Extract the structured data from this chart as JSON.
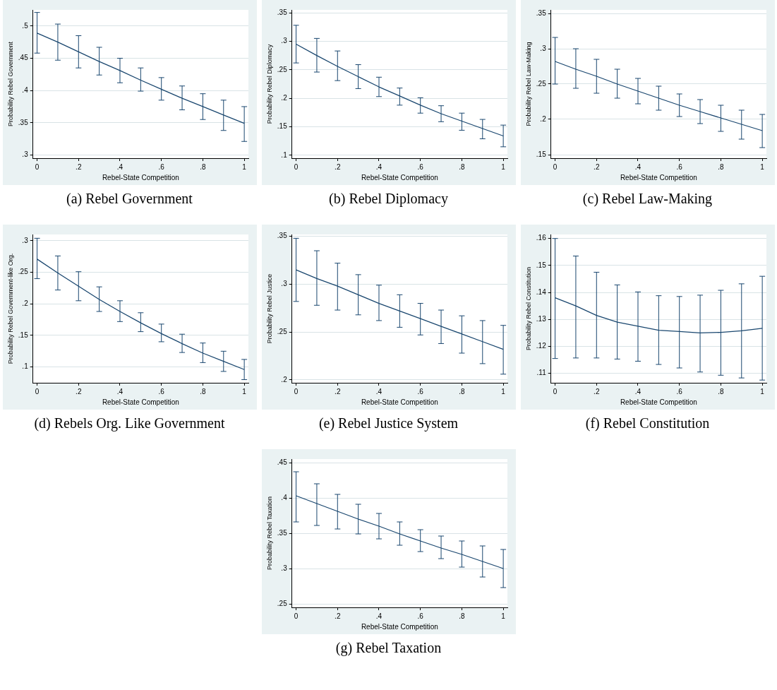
{
  "chart_data": [
    {
      "type": "line",
      "title": "(a) Rebel Government",
      "xlabel": "Rebel-State Competition",
      "ylabel": "Probability Rebel Government",
      "x": [
        0,
        0.1,
        0.2,
        0.3,
        0.4,
        0.5,
        0.6,
        0.7,
        0.8,
        0.9,
        1
      ],
      "xlim": [
        -0.02,
        1.02
      ],
      "xticks": [
        {
          "value": 0,
          "label": "0"
        },
        {
          "value": 0.2,
          "label": ".2"
        },
        {
          "value": 0.4,
          "label": ".4"
        },
        {
          "value": 0.6,
          "label": ".6"
        },
        {
          "value": 0.8,
          "label": ".8"
        },
        {
          "value": 1,
          "label": "1"
        }
      ],
      "ylim": [
        0.295,
        0.525
      ],
      "yticks": [
        {
          "value": 0.3,
          "label": ".3"
        },
        {
          "value": 0.35,
          "label": ".35"
        },
        {
          "value": 0.4,
          "label": ".4"
        },
        {
          "value": 0.45,
          "label": ".45"
        },
        {
          "value": 0.5,
          "label": ".5"
        }
      ],
      "grid": "y",
      "marker": "none",
      "line_style": "solid",
      "series": [
        {
          "color": "#1a476f",
          "values": [
            0.489,
            0.475,
            0.46,
            0.445,
            0.431,
            0.416,
            0.402,
            0.388,
            0.375,
            0.362,
            0.349
          ],
          "errors": [
            [
              0.458,
              0.521
            ],
            [
              0.447,
              0.503
            ],
            [
              0.435,
              0.485
            ],
            [
              0.424,
              0.467
            ],
            [
              0.412,
              0.45
            ],
            [
              0.399,
              0.435
            ],
            [
              0.385,
              0.42
            ],
            [
              0.37,
              0.407
            ],
            [
              0.355,
              0.395
            ],
            [
              0.338,
              0.385
            ],
            [
              0.321,
              0.375
            ]
          ]
        }
      ]
    },
    {
      "type": "line",
      "title": "(b) Rebel Diplomacy",
      "xlabel": "Rebel-State Competition",
      "ylabel": "Probability Rebel Diplomacy",
      "x": [
        0,
        0.1,
        0.2,
        0.3,
        0.4,
        0.5,
        0.6,
        0.7,
        0.8,
        0.9,
        1
      ],
      "xlim": [
        -0.02,
        1.02
      ],
      "xticks": [
        {
          "value": 0,
          "label": "0"
        },
        {
          "value": 0.2,
          "label": ".2"
        },
        {
          "value": 0.4,
          "label": ".4"
        },
        {
          "value": 0.6,
          "label": ".6"
        },
        {
          "value": 0.8,
          "label": ".8"
        },
        {
          "value": 1,
          "label": "1"
        }
      ],
      "ylim": [
        0.095,
        0.355
      ],
      "yticks": [
        {
          "value": 0.1,
          "label": ".1"
        },
        {
          "value": 0.15,
          "label": ".15"
        },
        {
          "value": 0.2,
          "label": ".2"
        },
        {
          "value": 0.25,
          "label": ".25"
        },
        {
          "value": 0.3,
          "label": ".3"
        },
        {
          "value": 0.35,
          "label": ".35"
        }
      ],
      "grid": "y",
      "marker": "none",
      "line_style": "solid",
      "series": [
        {
          "color": "#1a476f",
          "values": [
            0.295,
            0.275,
            0.256,
            0.238,
            0.22,
            0.204,
            0.188,
            0.173,
            0.16,
            0.147,
            0.134
          ],
          "errors": [
            [
              0.262,
              0.328
            ],
            [
              0.246,
              0.305
            ],
            [
              0.231,
              0.283
            ],
            [
              0.217,
              0.259
            ],
            [
              0.203,
              0.237
            ],
            [
              0.188,
              0.218
            ],
            [
              0.174,
              0.201
            ],
            [
              0.159,
              0.187
            ],
            [
              0.144,
              0.174
            ],
            [
              0.129,
              0.163
            ],
            [
              0.115,
              0.153
            ]
          ]
        }
      ]
    },
    {
      "type": "line",
      "title": "(c) Rebel Law-Making",
      "xlabel": "Rebel-State Competition",
      "ylabel": "Probability Rebel Law-Making",
      "x": [
        0,
        0.1,
        0.2,
        0.3,
        0.4,
        0.5,
        0.6,
        0.7,
        0.8,
        0.9,
        1
      ],
      "xlim": [
        -0.02,
        1.02
      ],
      "xticks": [
        {
          "value": 0,
          "label": "0"
        },
        {
          "value": 0.2,
          "label": ".2"
        },
        {
          "value": 0.4,
          "label": ".4"
        },
        {
          "value": 0.6,
          "label": ".6"
        },
        {
          "value": 0.8,
          "label": ".8"
        },
        {
          "value": 1,
          "label": "1"
        }
      ],
      "ylim": [
        0.145,
        0.355
      ],
      "yticks": [
        {
          "value": 0.15,
          "label": ".15"
        },
        {
          "value": 0.2,
          "label": ".2"
        },
        {
          "value": 0.25,
          "label": ".25"
        },
        {
          "value": 0.3,
          "label": ".3"
        },
        {
          "value": 0.35,
          "label": ".35"
        }
      ],
      "grid": "y",
      "marker": "none",
      "line_style": "solid",
      "series": [
        {
          "color": "#1a476f",
          "values": [
            0.282,
            0.271,
            0.261,
            0.25,
            0.24,
            0.23,
            0.22,
            0.211,
            0.202,
            0.193,
            0.184
          ],
          "errors": [
            [
              0.25,
              0.316
            ],
            [
              0.244,
              0.3
            ],
            [
              0.237,
              0.285
            ],
            [
              0.23,
              0.271
            ],
            [
              0.222,
              0.258
            ],
            [
              0.213,
              0.247
            ],
            [
              0.204,
              0.236
            ],
            [
              0.194,
              0.228
            ],
            [
              0.183,
              0.22
            ],
            [
              0.172,
              0.213
            ],
            [
              0.16,
              0.207
            ]
          ]
        }
      ]
    },
    {
      "type": "line",
      "title": "(d) Rebels Org. Like Government",
      "xlabel": "Rebel-State Competition",
      "ylabel": "Probability Rebel Government-like Org.",
      "x": [
        0,
        0.1,
        0.2,
        0.3,
        0.4,
        0.5,
        0.6,
        0.7,
        0.8,
        0.9,
        1
      ],
      "xlim": [
        -0.02,
        1.02
      ],
      "xticks": [
        {
          "value": 0,
          "label": "0"
        },
        {
          "value": 0.2,
          "label": ".2"
        },
        {
          "value": 0.4,
          "label": ".4"
        },
        {
          "value": 0.6,
          "label": ".6"
        },
        {
          "value": 0.8,
          "label": ".8"
        },
        {
          "value": 1,
          "label": "1"
        }
      ],
      "ylim": [
        0.075,
        0.31
      ],
      "yticks": [
        {
          "value": 0.1,
          "label": ".1"
        },
        {
          "value": 0.15,
          "label": ".15"
        },
        {
          "value": 0.2,
          "label": ".2"
        },
        {
          "value": 0.25,
          "label": ".25"
        },
        {
          "value": 0.3,
          "label": ".3"
        }
      ],
      "grid": "y",
      "marker": "none",
      "line_style": "solid",
      "series": [
        {
          "color": "#1a476f",
          "values": [
            0.271,
            0.249,
            0.228,
            0.207,
            0.188,
            0.17,
            0.153,
            0.137,
            0.122,
            0.109,
            0.096
          ],
          "errors": [
            [
              0.24,
              0.304
            ],
            [
              0.222,
              0.276
            ],
            [
              0.205,
              0.251
            ],
            [
              0.188,
              0.227
            ],
            [
              0.172,
              0.205
            ],
            [
              0.156,
              0.186
            ],
            [
              0.14,
              0.168
            ],
            [
              0.123,
              0.152
            ],
            [
              0.107,
              0.138
            ],
            [
              0.093,
              0.125
            ],
            [
              0.08,
              0.112
            ]
          ]
        }
      ]
    },
    {
      "type": "line",
      "title": "(e) Rebel Justice System",
      "xlabel": "Rebel-State Competition",
      "ylabel": "Probability Rebel Justice",
      "x": [
        0,
        0.1,
        0.2,
        0.3,
        0.4,
        0.5,
        0.6,
        0.7,
        0.8,
        0.9,
        1
      ],
      "xlim": [
        -0.02,
        1.02
      ],
      "xticks": [
        {
          "value": 0,
          "label": "0"
        },
        {
          "value": 0.2,
          "label": ".2"
        },
        {
          "value": 0.4,
          "label": ".4"
        },
        {
          "value": 0.6,
          "label": ".6"
        },
        {
          "value": 0.8,
          "label": ".8"
        },
        {
          "value": 1,
          "label": "1"
        }
      ],
      "ylim": [
        0.197,
        0.352
      ],
      "yticks": [
        {
          "value": 0.2,
          "label": ".2"
        },
        {
          "value": 0.25,
          "label": ".25"
        },
        {
          "value": 0.3,
          "label": ".3"
        },
        {
          "value": 0.35,
          "label": ".35"
        }
      ],
      "grid": "y",
      "marker": "none",
      "line_style": "solid",
      "series": [
        {
          "color": "#1a476f",
          "values": [
            0.315,
            0.306,
            0.298,
            0.289,
            0.28,
            0.272,
            0.264,
            0.256,
            0.248,
            0.24,
            0.232
          ],
          "errors": [
            [
              0.282,
              0.348
            ],
            [
              0.278,
              0.335
            ],
            [
              0.273,
              0.322
            ],
            [
              0.268,
              0.31
            ],
            [
              0.262,
              0.299
            ],
            [
              0.255,
              0.289
            ],
            [
              0.247,
              0.28
            ],
            [
              0.238,
              0.273
            ],
            [
              0.228,
              0.267
            ],
            [
              0.217,
              0.262
            ],
            [
              0.206,
              0.257
            ]
          ]
        }
      ]
    },
    {
      "type": "line",
      "title": "(f) Rebel Constitution",
      "xlabel": "Rebel-State Competition",
      "ylabel": "Probability Rebel Constitution",
      "x": [
        0,
        0.1,
        0.2,
        0.3,
        0.4,
        0.5,
        0.6,
        0.7,
        0.8,
        0.9,
        1
      ],
      "xlim": [
        -0.02,
        1.02
      ],
      "xticks": [
        {
          "value": 0,
          "label": "0"
        },
        {
          "value": 0.2,
          "label": ".2"
        },
        {
          "value": 0.4,
          "label": ".4"
        },
        {
          "value": 0.6,
          "label": ".6"
        },
        {
          "value": 0.8,
          "label": ".8"
        },
        {
          "value": 1,
          "label": "1"
        }
      ],
      "ylim": [
        0.1065,
        0.1615
      ],
      "yticks": [
        {
          "value": 0.11,
          "label": ".11"
        },
        {
          "value": 0.12,
          "label": ".12"
        },
        {
          "value": 0.13,
          "label": ".13"
        },
        {
          "value": 0.14,
          "label": ".14"
        },
        {
          "value": 0.15,
          "label": ".15"
        },
        {
          "value": 0.16,
          "label": ".16"
        }
      ],
      "grid": "y",
      "marker": "none",
      "line_style": "solid",
      "series": [
        {
          "color": "#1a476f",
          "values": [
            0.138,
            0.135,
            0.1315,
            0.129,
            0.1275,
            0.126,
            0.1255,
            0.125,
            0.1252,
            0.1258,
            0.1267
          ],
          "errors": [
            [
              0.1155,
              0.16
            ],
            [
              0.1157,
              0.1535
            ],
            [
              0.1157,
              0.1475
            ],
            [
              0.1153,
              0.1428
            ],
            [
              0.1145,
              0.1402
            ],
            [
              0.1133,
              0.1388
            ],
            [
              0.112,
              0.1385
            ],
            [
              0.1105,
              0.139
            ],
            [
              0.1093,
              0.1408
            ],
            [
              0.1083,
              0.1432
            ],
            [
              0.1075,
              0.146
            ]
          ]
        }
      ]
    },
    {
      "type": "line",
      "title": "(g) Rebel Taxation",
      "xlabel": "Rebel-State Competition",
      "ylabel": "Probability Rebel Taxation",
      "x": [
        0,
        0.1,
        0.2,
        0.3,
        0.4,
        0.5,
        0.6,
        0.7,
        0.8,
        0.9,
        1
      ],
      "xlim": [
        -0.02,
        1.02
      ],
      "xticks": [
        {
          "value": 0,
          "label": "0"
        },
        {
          "value": 0.2,
          "label": ".2"
        },
        {
          "value": 0.4,
          "label": ".4"
        },
        {
          "value": 0.6,
          "label": ".6"
        },
        {
          "value": 0.8,
          "label": ".8"
        },
        {
          "value": 1,
          "label": "1"
        }
      ],
      "ylim": [
        0.245,
        0.455
      ],
      "yticks": [
        {
          "value": 0.25,
          "label": ".25"
        },
        {
          "value": 0.3,
          "label": ".3"
        },
        {
          "value": 0.35,
          "label": ".35"
        },
        {
          "value": 0.4,
          "label": ".4"
        },
        {
          "value": 0.45,
          "label": ".45"
        }
      ],
      "grid": "y",
      "marker": "none",
      "line_style": "solid",
      "series": [
        {
          "color": "#1a476f",
          "values": [
            0.403,
            0.392,
            0.381,
            0.37,
            0.36,
            0.349,
            0.339,
            0.329,
            0.32,
            0.31,
            0.3
          ],
          "errors": [
            [
              0.366,
              0.437
            ],
            [
              0.361,
              0.42
            ],
            [
              0.356,
              0.405
            ],
            [
              0.349,
              0.391
            ],
            [
              0.342,
              0.378
            ],
            [
              0.333,
              0.366
            ],
            [
              0.324,
              0.355
            ],
            [
              0.314,
              0.346
            ],
            [
              0.302,
              0.339
            ],
            [
              0.288,
              0.332
            ],
            [
              0.273,
              0.327
            ]
          ]
        }
      ]
    }
  ]
}
